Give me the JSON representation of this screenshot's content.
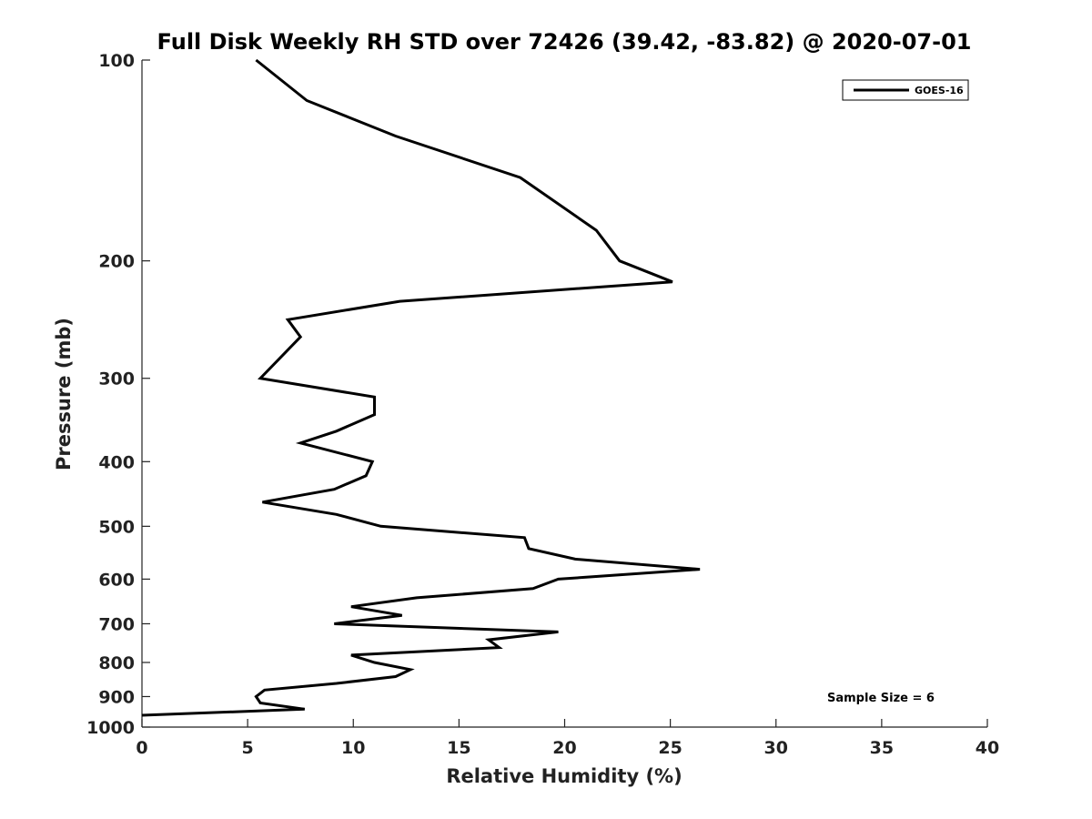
{
  "chart_data": {
    "type": "line",
    "title": "Full Disk Weekly RH STD over 72426 (39.42, -83.82) @ 2020-07-01",
    "xlabel": "Relative Humidity (%)",
    "ylabel": "Pressure (mb)",
    "xlim": [
      0,
      40
    ],
    "ylim": [
      1000,
      100
    ],
    "yscale": "log",
    "x_ticks": [
      0,
      5,
      10,
      15,
      20,
      25,
      30,
      35,
      40
    ],
    "x_tick_labels": [
      "0",
      "5",
      "10",
      "15",
      "20",
      "25",
      "30",
      "35",
      "40"
    ],
    "y_ticks": [
      100,
      200,
      300,
      400,
      500,
      600,
      700,
      800,
      900,
      1000
    ],
    "y_tick_labels": [
      "100",
      "200",
      "300",
      "400",
      "500",
      "600",
      "700",
      "800",
      "900",
      "1000"
    ],
    "grid": false,
    "legend_position": "top-right",
    "annotation": "Sample Size = 6",
    "series": [
      {
        "name": "GOES-16",
        "color": "#000000",
        "points": [
          [
            5.4,
            100
          ],
          [
            7.8,
            115
          ],
          [
            12.0,
            130
          ],
          [
            17.9,
            150
          ],
          [
            21.5,
            180
          ],
          [
            22.6,
            200
          ],
          [
            25.1,
            215
          ],
          [
            12.2,
            230
          ],
          [
            6.9,
            245
          ],
          [
            7.5,
            260
          ],
          [
            5.6,
            300
          ],
          [
            11.0,
            320
          ],
          [
            11.0,
            340
          ],
          [
            9.2,
            360
          ],
          [
            7.5,
            375
          ],
          [
            10.9,
            400
          ],
          [
            10.6,
            420
          ],
          [
            9.1,
            440
          ],
          [
            5.7,
            460
          ],
          [
            9.2,
            480
          ],
          [
            11.3,
            500
          ],
          [
            18.1,
            520
          ],
          [
            18.3,
            540
          ],
          [
            20.5,
            560
          ],
          [
            26.4,
            580
          ],
          [
            19.7,
            600
          ],
          [
            18.5,
            620
          ],
          [
            13.0,
            640
          ],
          [
            9.9,
            660
          ],
          [
            12.3,
            680
          ],
          [
            9.1,
            700
          ],
          [
            19.7,
            720
          ],
          [
            16.4,
            740
          ],
          [
            16.9,
            760
          ],
          [
            9.9,
            780
          ],
          [
            11.0,
            800
          ],
          [
            12.7,
            820
          ],
          [
            12.0,
            840
          ],
          [
            9.2,
            860
          ],
          [
            5.8,
            880
          ],
          [
            5.4,
            900
          ],
          [
            5.6,
            920
          ],
          [
            7.7,
            940
          ],
          [
            0.0,
            960
          ]
        ]
      }
    ]
  }
}
